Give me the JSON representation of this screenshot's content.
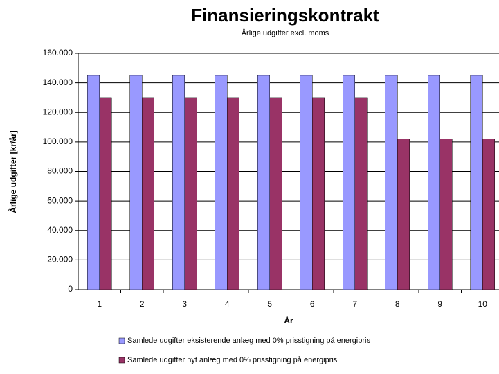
{
  "chart_data": {
    "type": "bar",
    "title": "Finansieringskontrakt",
    "subtitle": "Årlige udgifter excl. moms",
    "y_label": "Årlige udgifter [kr/år]",
    "x_label": "År",
    "categories": [
      "1",
      "2",
      "3",
      "4",
      "5",
      "6",
      "7",
      "8",
      "9",
      "10"
    ],
    "series": [
      {
        "name": "Samlede udgifter eksisterende anlæg med 0% prisstigning på energipris",
        "color": "#9999ff",
        "values": [
          145000,
          145000,
          145000,
          145000,
          145000,
          145000,
          145000,
          145000,
          145000,
          145000
        ]
      },
      {
        "name": "Samlede udgifter nyt anlæg med 0% prisstigning på energipris",
        "color": "#993366",
        "values": [
          130000,
          130000,
          130000,
          130000,
          130000,
          130000,
          130000,
          102000,
          102000,
          102000
        ]
      }
    ],
    "ylim": [
      0,
      160000
    ],
    "yticks": [
      0,
      {
        "value": 20000,
        "label": "20.000"
      },
      {
        "value": 40000,
        "label": "40.000"
      },
      {
        "value": 60000,
        "label": "60.000"
      },
      {
        "value": 80000,
        "label": "80.000"
      },
      {
        "value": 100000,
        "label": "100.000"
      },
      {
        "value": 120000,
        "label": "120.000"
      },
      {
        "value": 140000,
        "label": "140.000"
      },
      {
        "value": 160000,
        "label": "160.000"
      }
    ],
    "grid": true
  }
}
